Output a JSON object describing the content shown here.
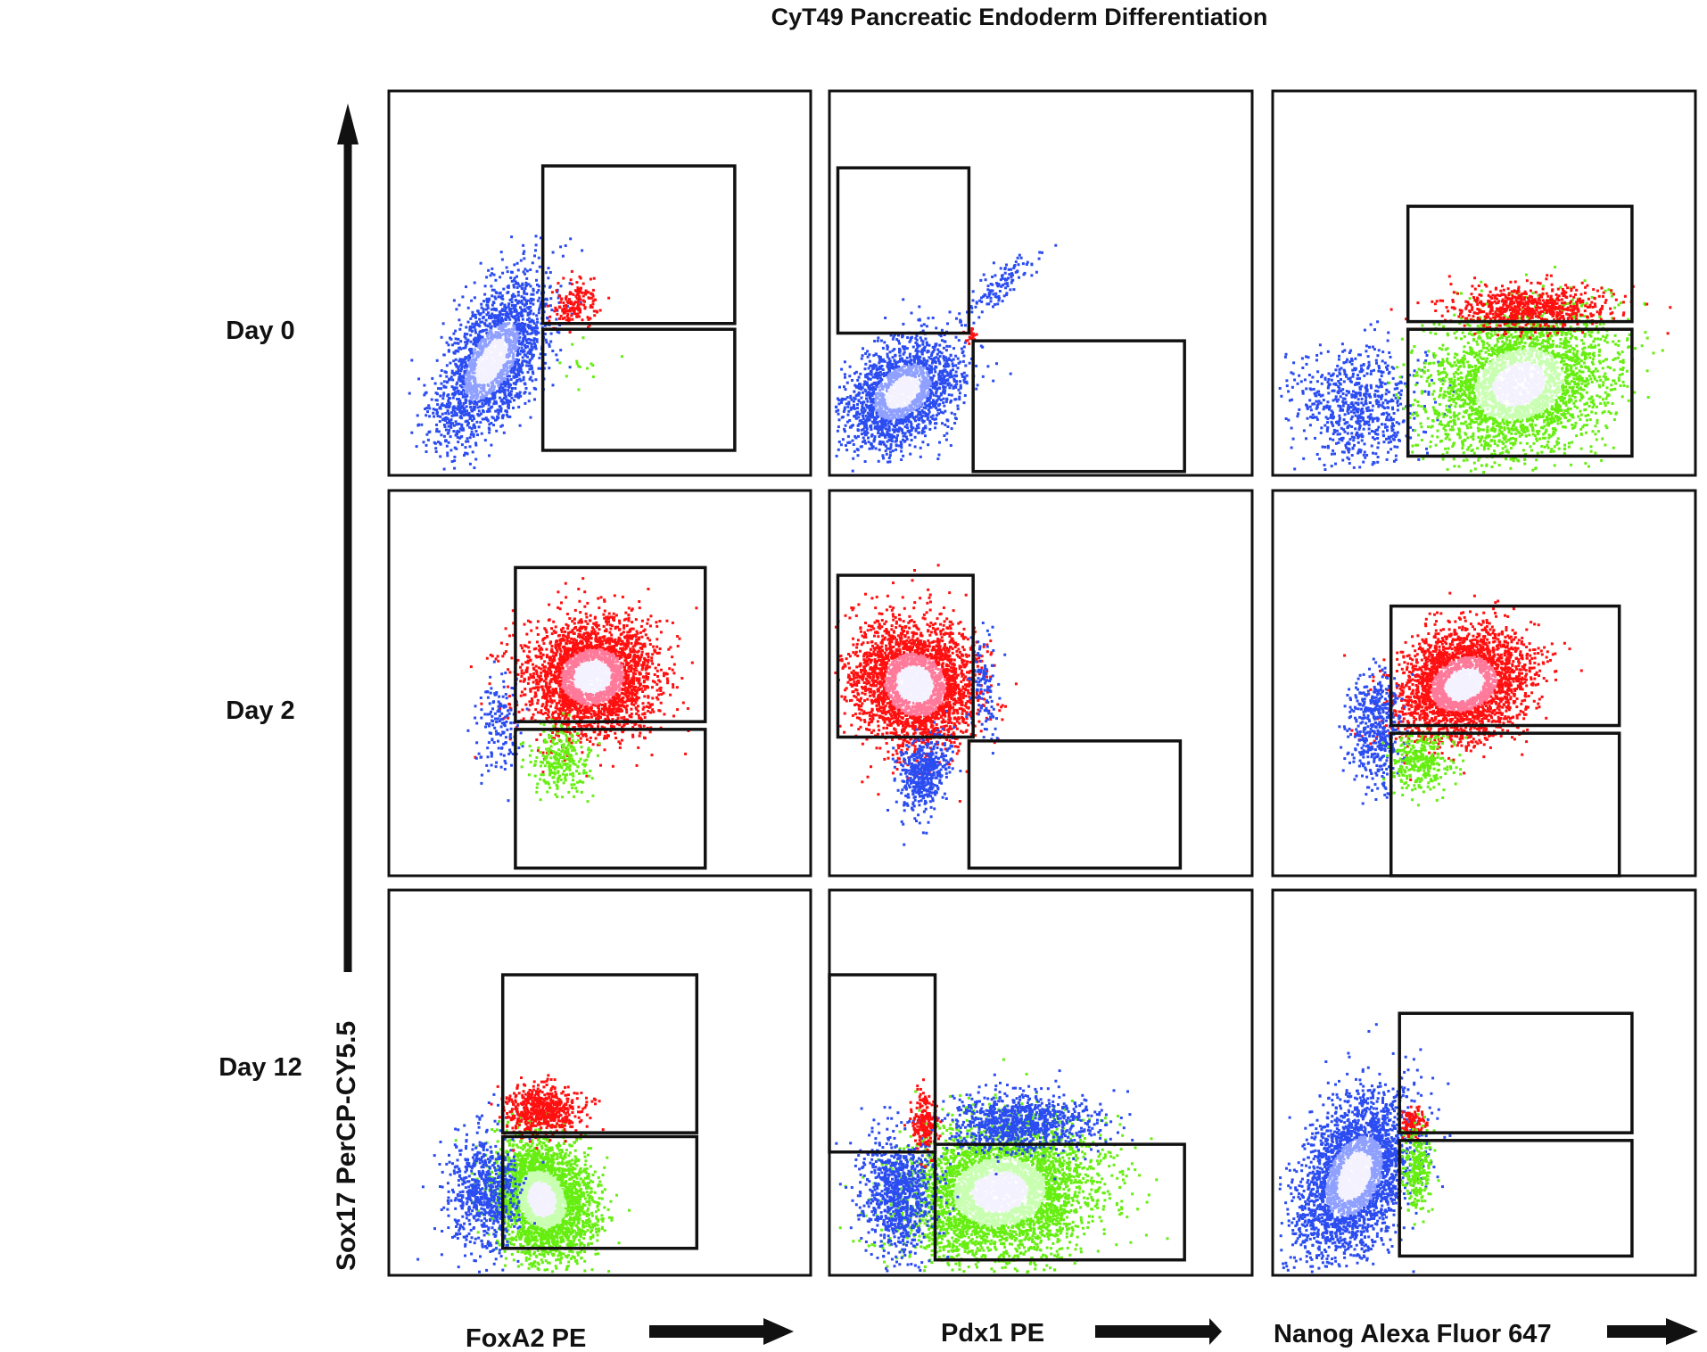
{
  "chart_data": {
    "type": "scatter",
    "title": "CyT49 Pancreatic Endoderm Differentiation",
    "ylabel": "Sox17 PerCP-CY5.5",
    "row_labels": [
      "Day 0",
      "Day 2",
      "Day 12"
    ],
    "col_labels": [
      "FoxA2 PE",
      "Pdx1 PE",
      "Nanog Alexa Fluor 647"
    ],
    "population_colors": {
      "blue": "#2b4cf0",
      "red": "#ff1010",
      "green": "#66ee11"
    },
    "axis_note": "Normalized flow-cytometry coordinates (0-1); x = marker intensity, y = Sox17 intensity",
    "panels": [
      {
        "row": 0,
        "col": 0,
        "gates": [
          [
            0.365,
            0.195,
            0.82,
            0.605
          ],
          [
            0.365,
            0.62,
            0.82,
            0.935
          ]
        ],
        "clouds": [
          {
            "color": "blue",
            "cx": 0.24,
            "cy": 0.7,
            "rx": 0.09,
            "ry": 0.2,
            "rot": 25,
            "n": 2200
          },
          {
            "color": "red",
            "cx": 0.44,
            "cy": 0.55,
            "rx": 0.06,
            "ry": 0.05,
            "rot": -45,
            "n": 160
          },
          {
            "color": "green",
            "cx": 0.45,
            "cy": 0.72,
            "rx": 0.06,
            "ry": 0.06,
            "rot": 0,
            "n": 14
          }
        ]
      },
      {
        "row": 0,
        "col": 1,
        "gates": [
          [
            0.02,
            0.2,
            0.33,
            0.63
          ],
          [
            0.34,
            0.65,
            0.84,
            0.99
          ]
        ],
        "clouds": [
          {
            "color": "blue",
            "cx": 0.17,
            "cy": 0.78,
            "rx": 0.1,
            "ry": 0.15,
            "rot": 40,
            "n": 2000
          },
          {
            "color": "blue",
            "cx": 0.4,
            "cy": 0.5,
            "rx": 0.03,
            "ry": 0.1,
            "rot": 45,
            "n": 120
          },
          {
            "color": "red",
            "cx": 0.33,
            "cy": 0.63,
            "rx": 0.015,
            "ry": 0.02,
            "rot": 0,
            "n": 20
          }
        ]
      },
      {
        "row": 0,
        "col": 2,
        "gates": [
          [
            0.32,
            0.3,
            0.85,
            0.6
          ],
          [
            0.32,
            0.62,
            0.85,
            0.95
          ]
        ],
        "clouds": [
          {
            "color": "blue",
            "cx": 0.2,
            "cy": 0.82,
            "rx": 0.14,
            "ry": 0.14,
            "rot": 0,
            "n": 700
          },
          {
            "color": "green",
            "cx": 0.58,
            "cy": 0.76,
            "rx": 0.2,
            "ry": 0.16,
            "rot": -30,
            "n": 3000
          },
          {
            "color": "red",
            "cx": 0.6,
            "cy": 0.56,
            "rx": 0.17,
            "ry": 0.05,
            "rot": 0,
            "n": 700
          }
        ]
      },
      {
        "row": 1,
        "col": 0,
        "gates": [
          [
            0.3,
            0.2,
            0.75,
            0.6
          ],
          [
            0.3,
            0.62,
            0.75,
            0.98
          ]
        ],
        "clouds": [
          {
            "color": "red",
            "cx": 0.48,
            "cy": 0.48,
            "rx": 0.14,
            "ry": 0.13,
            "rot": -35,
            "n": 3000
          },
          {
            "color": "blue",
            "cx": 0.26,
            "cy": 0.62,
            "rx": 0.05,
            "ry": 0.12,
            "rot": 0,
            "n": 160
          },
          {
            "color": "green",
            "cx": 0.4,
            "cy": 0.7,
            "rx": 0.07,
            "ry": 0.08,
            "rot": 0,
            "n": 260
          }
        ]
      },
      {
        "row": 1,
        "col": 1,
        "gates": [
          [
            0.02,
            0.22,
            0.34,
            0.64
          ],
          [
            0.33,
            0.65,
            0.83,
            0.98
          ]
        ],
        "clouds": [
          {
            "color": "red",
            "cx": 0.2,
            "cy": 0.5,
            "rx": 0.13,
            "ry": 0.15,
            "rot": -20,
            "n": 3000
          },
          {
            "color": "blue",
            "cx": 0.22,
            "cy": 0.73,
            "rx": 0.05,
            "ry": 0.09,
            "rot": 15,
            "n": 500
          },
          {
            "color": "blue",
            "cx": 0.36,
            "cy": 0.5,
            "rx": 0.03,
            "ry": 0.12,
            "rot": 0,
            "n": 120
          }
        ]
      },
      {
        "row": 1,
        "col": 2,
        "gates": [
          [
            0.28,
            0.3,
            0.82,
            0.61
          ],
          [
            0.28,
            0.63,
            0.82,
            1.0
          ]
        ],
        "clouds": [
          {
            "color": "red",
            "cx": 0.45,
            "cy": 0.5,
            "rx": 0.15,
            "ry": 0.12,
            "rot": -35,
            "n": 3000
          },
          {
            "color": "blue",
            "cx": 0.24,
            "cy": 0.62,
            "rx": 0.06,
            "ry": 0.14,
            "rot": 0,
            "n": 500
          },
          {
            "color": "green",
            "cx": 0.35,
            "cy": 0.7,
            "rx": 0.07,
            "ry": 0.08,
            "rot": 0,
            "n": 300
          }
        ]
      },
      {
        "row": 2,
        "col": 0,
        "gates": [
          [
            0.27,
            0.22,
            0.73,
            0.63
          ],
          [
            0.27,
            0.64,
            0.73,
            0.93
          ]
        ],
        "clouds": [
          {
            "color": "green",
            "cx": 0.36,
            "cy": 0.8,
            "rx": 0.1,
            "ry": 0.14,
            "rot": -15,
            "n": 3000
          },
          {
            "color": "blue",
            "cx": 0.22,
            "cy": 0.78,
            "rx": 0.08,
            "ry": 0.14,
            "rot": 0,
            "n": 700
          },
          {
            "color": "red",
            "cx": 0.36,
            "cy": 0.57,
            "rx": 0.08,
            "ry": 0.06,
            "rot": 0,
            "n": 600
          }
        ]
      },
      {
        "row": 2,
        "col": 1,
        "gates": [
          [
            0.0,
            0.22,
            0.25,
            0.68
          ],
          [
            0.25,
            0.66,
            0.84,
            0.96
          ]
        ],
        "clouds": [
          {
            "color": "green",
            "cx": 0.4,
            "cy": 0.78,
            "rx": 0.2,
            "ry": 0.16,
            "rot": -10,
            "n": 4000
          },
          {
            "color": "blue",
            "cx": 0.16,
            "cy": 0.78,
            "rx": 0.08,
            "ry": 0.14,
            "rot": 0,
            "n": 900
          },
          {
            "color": "blue",
            "cx": 0.45,
            "cy": 0.6,
            "rx": 0.16,
            "ry": 0.07,
            "rot": 0,
            "n": 900
          },
          {
            "color": "red",
            "cx": 0.22,
            "cy": 0.6,
            "rx": 0.03,
            "ry": 0.08,
            "rot": 0,
            "n": 200
          }
        ]
      },
      {
        "row": 2,
        "col": 2,
        "gates": [
          [
            0.3,
            0.32,
            0.85,
            0.63
          ],
          [
            0.3,
            0.65,
            0.85,
            0.95
          ]
        ],
        "clouds": [
          {
            "color": "blue",
            "cx": 0.19,
            "cy": 0.74,
            "rx": 0.11,
            "ry": 0.2,
            "rot": 20,
            "n": 3000
          },
          {
            "color": "red",
            "cx": 0.33,
            "cy": 0.6,
            "rx": 0.025,
            "ry": 0.04,
            "rot": 0,
            "n": 120
          },
          {
            "color": "green",
            "cx": 0.34,
            "cy": 0.72,
            "rx": 0.03,
            "ry": 0.09,
            "rot": 0,
            "n": 250
          }
        ]
      }
    ]
  }
}
